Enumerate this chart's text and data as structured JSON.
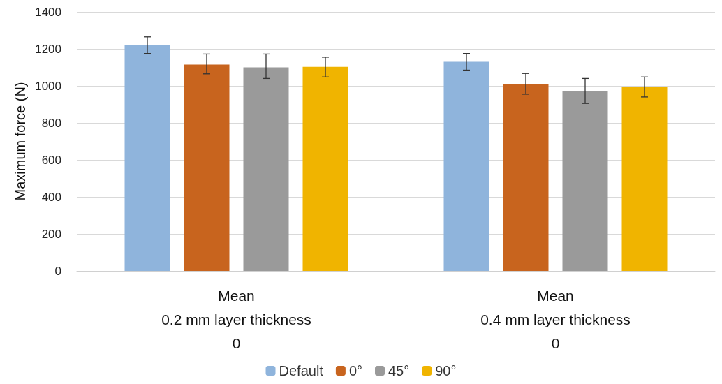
{
  "chart_data": {
    "type": "bar",
    "ylabel": "Maximum force (N)",
    "categories": [
      "Mean\n0.2 mm layer thickness\n0",
      "Mean\n0.4 mm layer thickness\n0"
    ],
    "series": [
      {
        "name": "Default",
        "color": "#8fb4dc",
        "values": [
          1220,
          1130
        ],
        "errors": [
          [
            1175,
            1265
          ],
          [
            1085,
            1175
          ]
        ]
      },
      {
        "name": "0°",
        "color": "#c8641e",
        "values": [
          1115,
          1010
        ],
        "errors": [
          [
            1065,
            1172
          ],
          [
            955,
            1067
          ]
        ]
      },
      {
        "name": "45°",
        "color": "#9a9a9a",
        "values": [
          1100,
          970
        ],
        "errors": [
          [
            1040,
            1172
          ],
          [
            905,
            1040
          ]
        ]
      },
      {
        "name": "90°",
        "color": "#f0b400",
        "values": [
          1103,
          992
        ],
        "errors": [
          [
            1048,
            1155
          ],
          [
            940,
            1048
          ]
        ]
      }
    ],
    "ylim": [
      0,
      1400
    ],
    "yticks": [
      0,
      200,
      400,
      600,
      800,
      1000,
      1200,
      1400
    ],
    "grid": "y",
    "legend": "bottom"
  }
}
